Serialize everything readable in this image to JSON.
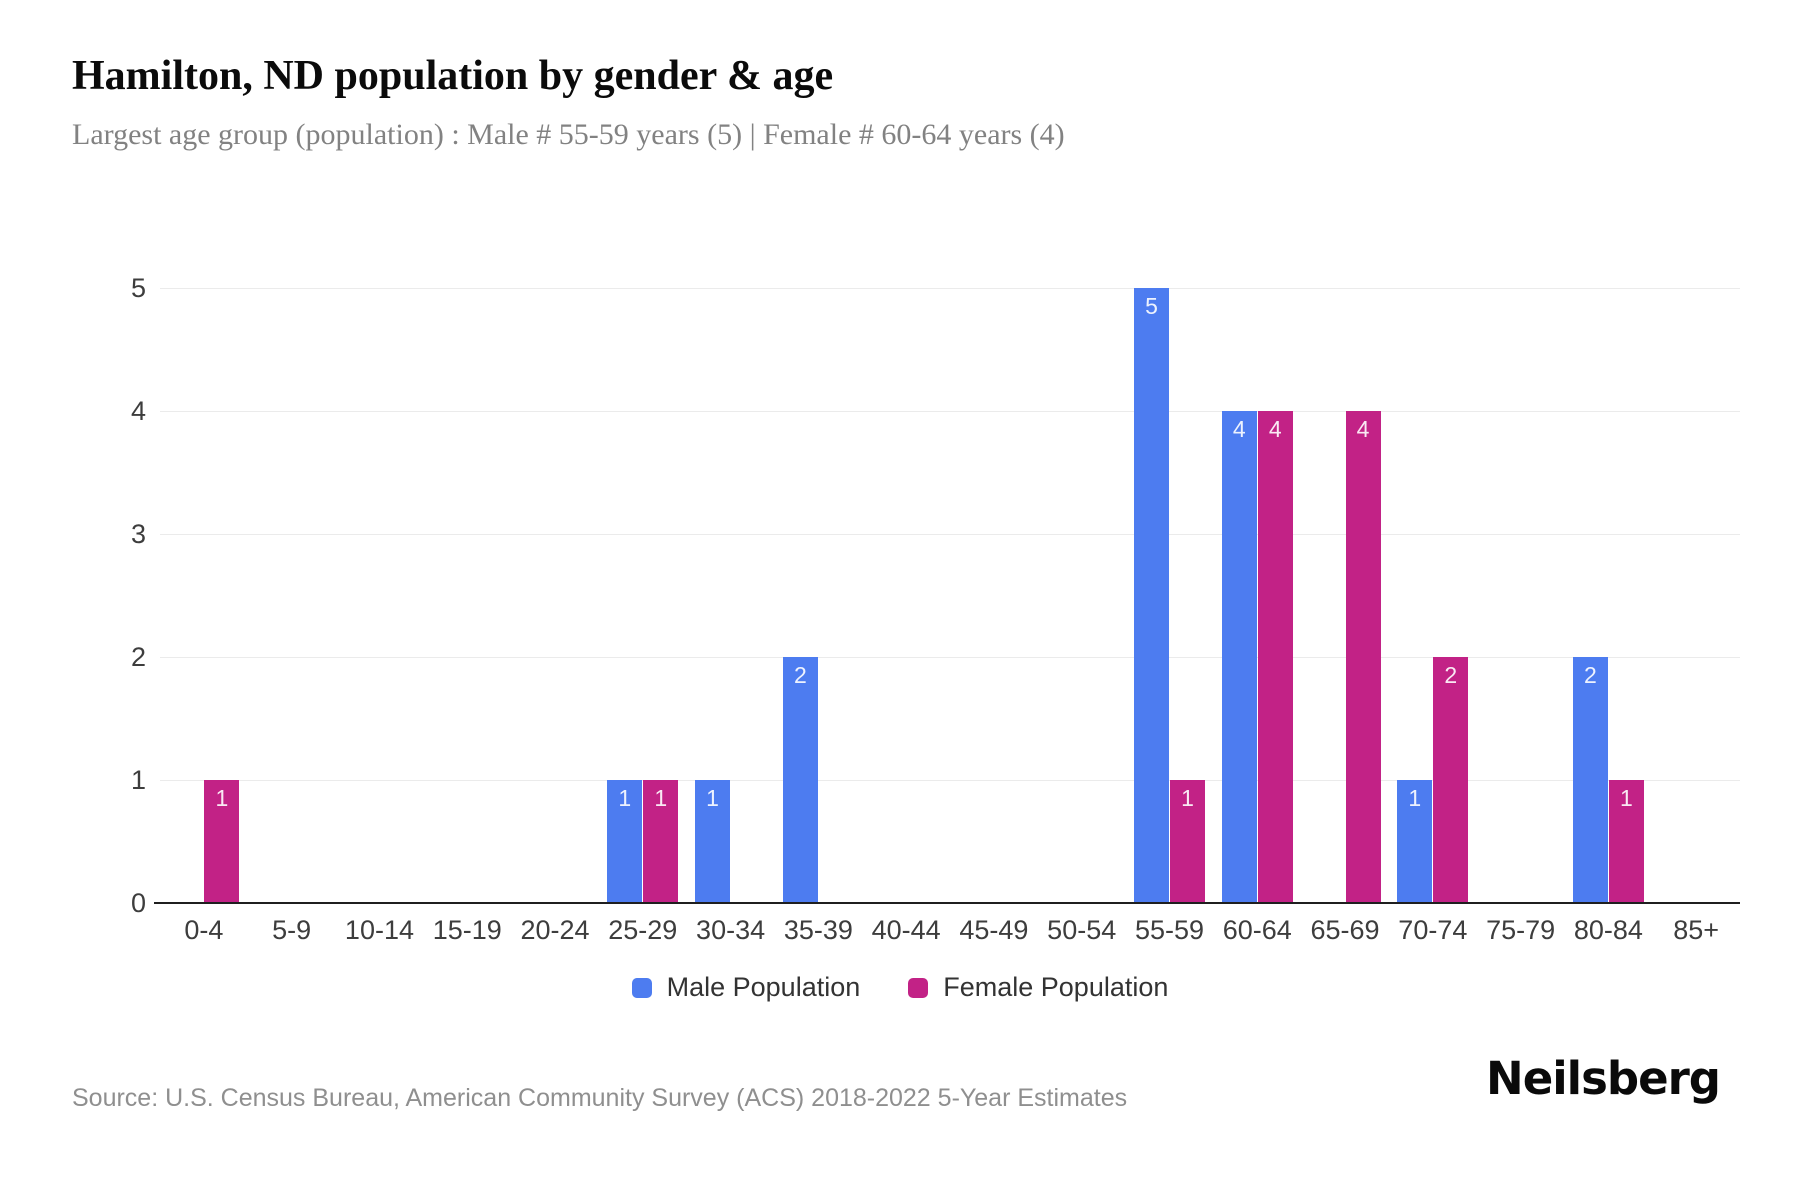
{
  "header": {
    "title": "Hamilton, ND population by gender & age",
    "subtitle": "Largest age group (population) : Male # 55-59 years (5) | Female # 60-64 years (4)"
  },
  "chart_data": {
    "type": "bar",
    "title": "Hamilton, ND population by gender & age",
    "subtitle": "Largest age group (population) : Male # 55-59 years (5) | Female # 60-64 years (4)",
    "categories": [
      "0-4",
      "5-9",
      "10-14",
      "15-19",
      "20-24",
      "25-29",
      "30-34",
      "35-39",
      "40-44",
      "45-49",
      "50-54",
      "55-59",
      "60-64",
      "65-69",
      "70-74",
      "75-79",
      "80-84",
      "85+"
    ],
    "series": [
      {
        "name": "Male Population",
        "color": "#4d7cf0",
        "values": [
          0,
          0,
          0,
          0,
          0,
          1,
          1,
          2,
          0,
          0,
          0,
          5,
          4,
          0,
          1,
          0,
          2,
          0
        ]
      },
      {
        "name": "Female Population",
        "color": "#c22286",
        "values": [
          1,
          0,
          0,
          0,
          0,
          1,
          0,
          0,
          0,
          0,
          0,
          1,
          4,
          4,
          2,
          0,
          1,
          0
        ]
      }
    ],
    "ylim": [
      0,
      5
    ],
    "y_ticks": [
      0,
      1,
      2,
      3,
      4,
      5
    ],
    "xlabel": "",
    "ylabel": "",
    "grid": true,
    "legend_position": "bottom",
    "bar_value_labels": true,
    "colors": {
      "male": "#4d7cf0",
      "female": "#c22286",
      "gridline": "#ebebeb",
      "axis": "#1f1f1f",
      "tick_text": "#3d3d3d"
    }
  },
  "footer": {
    "source": "Source: U.S. Census Bureau, American Community Survey (ACS) 2018-2022 5-Year Estimates",
    "brand": "Neilsberg"
  }
}
